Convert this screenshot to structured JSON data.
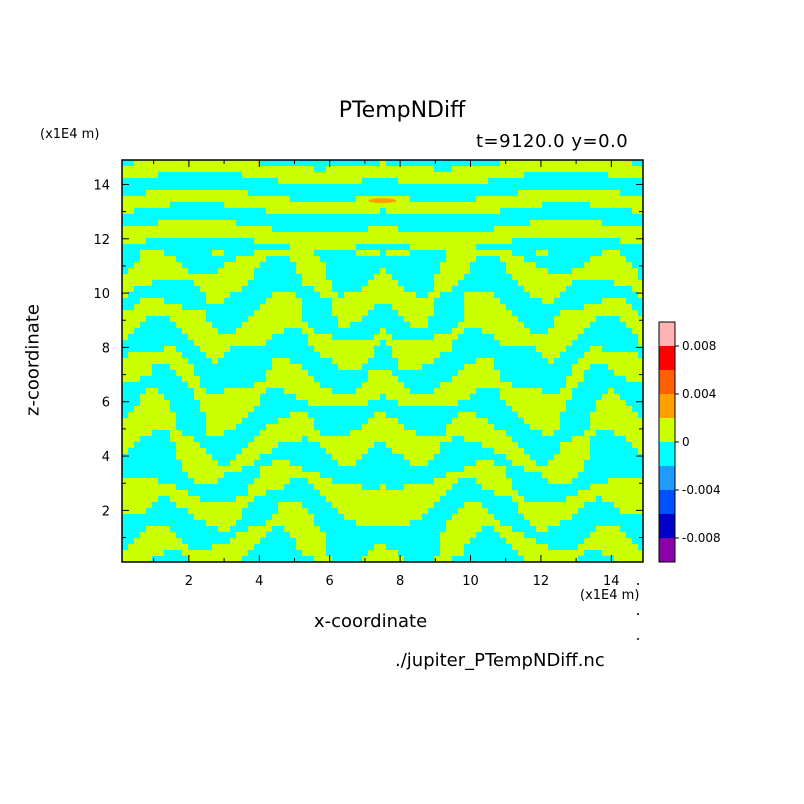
{
  "chart_data": {
    "type": "heatmap",
    "title": "PTempNDiff",
    "subtitle": "t=9120.0 y=0.0",
    "xlabel": "x-coordinate",
    "ylabel": "z-coordinate",
    "x_unit": "(x1E4 m)",
    "y_unit": "(x1E4 m)",
    "xlim": [
      0.1,
      14.9
    ],
    "ylim": [
      0.1,
      14.9
    ],
    "x_ticks": [
      2,
      4,
      6,
      8,
      10,
      12,
      14
    ],
    "y_ticks": [
      2,
      4,
      6,
      8,
      10,
      12,
      14
    ],
    "colorbar": {
      "levels": [
        -0.01,
        -0.008,
        -0.006,
        -0.004,
        -0.002,
        0,
        0.002,
        0.004,
        0.006,
        0.008,
        0.01
      ],
      "colors": [
        "#8b00a8",
        "#0000c8",
        "#0050ff",
        "#1e9bff",
        "#00ffff",
        "#ccff00",
        "#ff9f00",
        "#ff6000",
        "#ff0000",
        "#ffb4b4"
      ],
      "tick_values": [
        -0.008,
        -0.004,
        0,
        0.004,
        0.008
      ],
      "tick_labels": [
        "-0.008",
        "-0.004",
        "0",
        "0.004",
        "0.008"
      ]
    },
    "dominant_levels": [
      "-0.002 to 0",
      "0 to 0.002"
    ],
    "annotation": {
      "text": "orange spot",
      "x": 7.5,
      "z": 13.4
    }
  },
  "footer": "./jupiter_PTempNDiff.nc"
}
